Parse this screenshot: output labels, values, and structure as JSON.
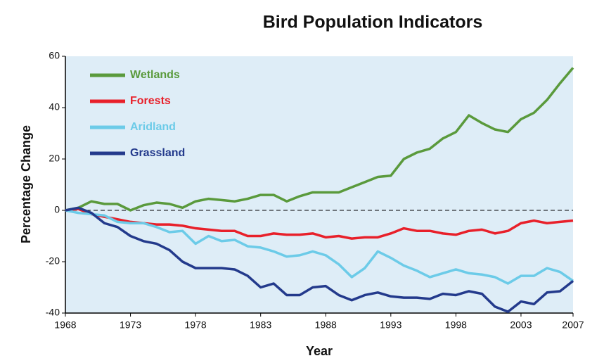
{
  "chart_data": {
    "type": "line",
    "title": "Bird Population Indicators",
    "xlabel": "Year",
    "ylabel": "Percentage Change",
    "x": [
      1968,
      1969,
      1970,
      1971,
      1972,
      1973,
      1974,
      1975,
      1976,
      1977,
      1978,
      1979,
      1980,
      1981,
      1982,
      1983,
      1984,
      1985,
      1986,
      1987,
      1988,
      1989,
      1990,
      1991,
      1992,
      1993,
      1994,
      1995,
      1996,
      1997,
      1998,
      1999,
      2000,
      2001,
      2002,
      2003,
      2004,
      2005,
      2006,
      2007
    ],
    "series": [
      {
        "name": "Wetlands",
        "color": "#5a9a3c",
        "values": [
          0,
          1,
          3.5,
          2.5,
          2.5,
          0,
          2,
          3,
          2.5,
          1,
          3.5,
          4.5,
          4,
          3.5,
          4.5,
          6,
          6,
          3.5,
          5.5,
          7,
          7,
          7,
          9,
          11,
          13,
          13.5,
          20,
          22.5,
          24,
          28,
          30.5,
          37,
          34,
          31.5,
          30.5,
          35.5,
          38,
          43,
          49.5,
          55.5
        ]
      },
      {
        "name": "Forests",
        "color": "#e8202a",
        "values": [
          0,
          0.5,
          -1.5,
          -2.5,
          -3.5,
          -4.5,
          -5,
          -5.5,
          -5.5,
          -6,
          -7,
          -7.5,
          -8,
          -8,
          -10,
          -10,
          -9,
          -9.5,
          -9.5,
          -9,
          -10.5,
          -10,
          -11,
          -10.5,
          -10.5,
          -9,
          -7,
          -8,
          -8,
          -9,
          -9.5,
          -8,
          -7.5,
          -9,
          -8,
          -5,
          -4,
          -5,
          -4.5,
          -4
        ]
      },
      {
        "name": "Aridland",
        "color": "#6ccbe8",
        "values": [
          0,
          -1,
          -1.5,
          -2,
          -4.5,
          -5,
          -5,
          -6.5,
          -8.5,
          -8,
          -13,
          -10,
          -12,
          -11.5,
          -14,
          -14.5,
          -16,
          -18,
          -17.5,
          -16,
          -17.5,
          -21,
          -26,
          -22.5,
          -16,
          -18.5,
          -21.5,
          -23.5,
          -26,
          -24.5,
          -23,
          -24.5,
          -25,
          -26,
          -28.5,
          -25.5,
          -25.5,
          -22.5,
          -24,
          -27.5
        ]
      },
      {
        "name": "Grassland",
        "color": "#233a8c",
        "values": [
          0,
          1,
          -1,
          -5,
          -6.5,
          -10,
          -12,
          -13,
          -15.5,
          -20,
          -22.5,
          -22.5,
          -22.5,
          -23,
          -25.5,
          -30,
          -28.5,
          -33,
          -33,
          -30,
          -29.5,
          -33,
          -35,
          -33,
          -32,
          -33.5,
          -34,
          -34,
          -34.5,
          -32.5,
          -33,
          -31.5,
          -32.5,
          -37.5,
          -39.5,
          -35.5,
          -36.5,
          -32,
          -31.5,
          -27.5
        ]
      }
    ],
    "xlim": [
      1968,
      2007
    ],
    "xticks": [
      1968,
      1973,
      1978,
      1983,
      1988,
      1993,
      1998,
      2003,
      2007
    ],
    "ylim": [
      -40,
      60
    ],
    "yticks": [
      -40,
      -20,
      0,
      20,
      40,
      60
    ],
    "reference_line": 0,
    "legend": "upper left"
  }
}
